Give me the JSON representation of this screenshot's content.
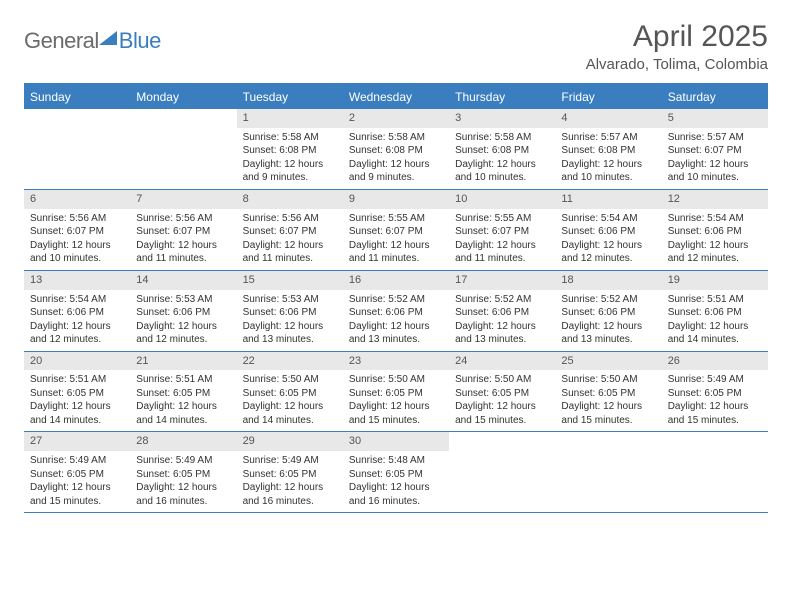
{
  "logo": {
    "general": "General",
    "blue": "Blue"
  },
  "title": "April 2025",
  "location": "Alvarado, Tolima, Colombia",
  "header_color": "#3a7ebf",
  "daynum_bg": "#e8e8e8",
  "weekdays": [
    "Sunday",
    "Monday",
    "Tuesday",
    "Wednesday",
    "Thursday",
    "Friday",
    "Saturday"
  ],
  "weeks": [
    [
      null,
      null,
      {
        "n": "1",
        "sr": "Sunrise: 5:58 AM",
        "ss": "Sunset: 6:08 PM",
        "dl1": "Daylight: 12 hours",
        "dl2": "and 9 minutes."
      },
      {
        "n": "2",
        "sr": "Sunrise: 5:58 AM",
        "ss": "Sunset: 6:08 PM",
        "dl1": "Daylight: 12 hours",
        "dl2": "and 9 minutes."
      },
      {
        "n": "3",
        "sr": "Sunrise: 5:58 AM",
        "ss": "Sunset: 6:08 PM",
        "dl1": "Daylight: 12 hours",
        "dl2": "and 10 minutes."
      },
      {
        "n": "4",
        "sr": "Sunrise: 5:57 AM",
        "ss": "Sunset: 6:08 PM",
        "dl1": "Daylight: 12 hours",
        "dl2": "and 10 minutes."
      },
      {
        "n": "5",
        "sr": "Sunrise: 5:57 AM",
        "ss": "Sunset: 6:07 PM",
        "dl1": "Daylight: 12 hours",
        "dl2": "and 10 minutes."
      }
    ],
    [
      {
        "n": "6",
        "sr": "Sunrise: 5:56 AM",
        "ss": "Sunset: 6:07 PM",
        "dl1": "Daylight: 12 hours",
        "dl2": "and 10 minutes."
      },
      {
        "n": "7",
        "sr": "Sunrise: 5:56 AM",
        "ss": "Sunset: 6:07 PM",
        "dl1": "Daylight: 12 hours",
        "dl2": "and 11 minutes."
      },
      {
        "n": "8",
        "sr": "Sunrise: 5:56 AM",
        "ss": "Sunset: 6:07 PM",
        "dl1": "Daylight: 12 hours",
        "dl2": "and 11 minutes."
      },
      {
        "n": "9",
        "sr": "Sunrise: 5:55 AM",
        "ss": "Sunset: 6:07 PM",
        "dl1": "Daylight: 12 hours",
        "dl2": "and 11 minutes."
      },
      {
        "n": "10",
        "sr": "Sunrise: 5:55 AM",
        "ss": "Sunset: 6:07 PM",
        "dl1": "Daylight: 12 hours",
        "dl2": "and 11 minutes."
      },
      {
        "n": "11",
        "sr": "Sunrise: 5:54 AM",
        "ss": "Sunset: 6:06 PM",
        "dl1": "Daylight: 12 hours",
        "dl2": "and 12 minutes."
      },
      {
        "n": "12",
        "sr": "Sunrise: 5:54 AM",
        "ss": "Sunset: 6:06 PM",
        "dl1": "Daylight: 12 hours",
        "dl2": "and 12 minutes."
      }
    ],
    [
      {
        "n": "13",
        "sr": "Sunrise: 5:54 AM",
        "ss": "Sunset: 6:06 PM",
        "dl1": "Daylight: 12 hours",
        "dl2": "and 12 minutes."
      },
      {
        "n": "14",
        "sr": "Sunrise: 5:53 AM",
        "ss": "Sunset: 6:06 PM",
        "dl1": "Daylight: 12 hours",
        "dl2": "and 12 minutes."
      },
      {
        "n": "15",
        "sr": "Sunrise: 5:53 AM",
        "ss": "Sunset: 6:06 PM",
        "dl1": "Daylight: 12 hours",
        "dl2": "and 13 minutes."
      },
      {
        "n": "16",
        "sr": "Sunrise: 5:52 AM",
        "ss": "Sunset: 6:06 PM",
        "dl1": "Daylight: 12 hours",
        "dl2": "and 13 minutes."
      },
      {
        "n": "17",
        "sr": "Sunrise: 5:52 AM",
        "ss": "Sunset: 6:06 PM",
        "dl1": "Daylight: 12 hours",
        "dl2": "and 13 minutes."
      },
      {
        "n": "18",
        "sr": "Sunrise: 5:52 AM",
        "ss": "Sunset: 6:06 PM",
        "dl1": "Daylight: 12 hours",
        "dl2": "and 13 minutes."
      },
      {
        "n": "19",
        "sr": "Sunrise: 5:51 AM",
        "ss": "Sunset: 6:06 PM",
        "dl1": "Daylight: 12 hours",
        "dl2": "and 14 minutes."
      }
    ],
    [
      {
        "n": "20",
        "sr": "Sunrise: 5:51 AM",
        "ss": "Sunset: 6:05 PM",
        "dl1": "Daylight: 12 hours",
        "dl2": "and 14 minutes."
      },
      {
        "n": "21",
        "sr": "Sunrise: 5:51 AM",
        "ss": "Sunset: 6:05 PM",
        "dl1": "Daylight: 12 hours",
        "dl2": "and 14 minutes."
      },
      {
        "n": "22",
        "sr": "Sunrise: 5:50 AM",
        "ss": "Sunset: 6:05 PM",
        "dl1": "Daylight: 12 hours",
        "dl2": "and 14 minutes."
      },
      {
        "n": "23",
        "sr": "Sunrise: 5:50 AM",
        "ss": "Sunset: 6:05 PM",
        "dl1": "Daylight: 12 hours",
        "dl2": "and 15 minutes."
      },
      {
        "n": "24",
        "sr": "Sunrise: 5:50 AM",
        "ss": "Sunset: 6:05 PM",
        "dl1": "Daylight: 12 hours",
        "dl2": "and 15 minutes."
      },
      {
        "n": "25",
        "sr": "Sunrise: 5:50 AM",
        "ss": "Sunset: 6:05 PM",
        "dl1": "Daylight: 12 hours",
        "dl2": "and 15 minutes."
      },
      {
        "n": "26",
        "sr": "Sunrise: 5:49 AM",
        "ss": "Sunset: 6:05 PM",
        "dl1": "Daylight: 12 hours",
        "dl2": "and 15 minutes."
      }
    ],
    [
      {
        "n": "27",
        "sr": "Sunrise: 5:49 AM",
        "ss": "Sunset: 6:05 PM",
        "dl1": "Daylight: 12 hours",
        "dl2": "and 15 minutes."
      },
      {
        "n": "28",
        "sr": "Sunrise: 5:49 AM",
        "ss": "Sunset: 6:05 PM",
        "dl1": "Daylight: 12 hours",
        "dl2": "and 16 minutes."
      },
      {
        "n": "29",
        "sr": "Sunrise: 5:49 AM",
        "ss": "Sunset: 6:05 PM",
        "dl1": "Daylight: 12 hours",
        "dl2": "and 16 minutes."
      },
      {
        "n": "30",
        "sr": "Sunrise: 5:48 AM",
        "ss": "Sunset: 6:05 PM",
        "dl1": "Daylight: 12 hours",
        "dl2": "and 16 minutes."
      },
      null,
      null,
      null
    ]
  ]
}
